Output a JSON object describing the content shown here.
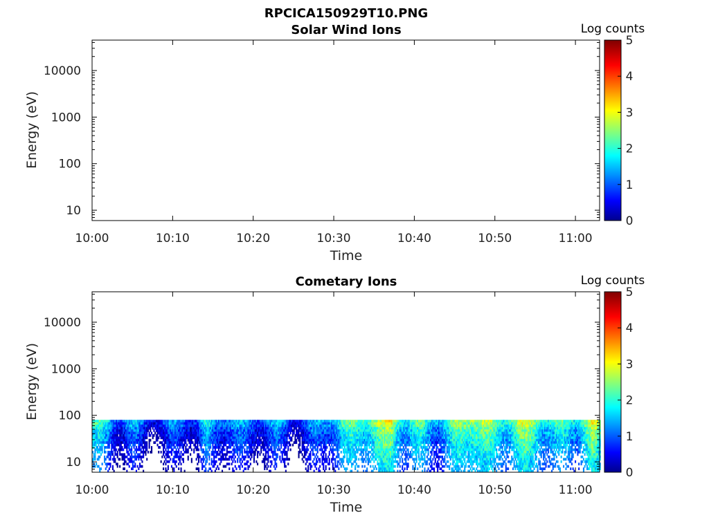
{
  "figure_title": "RPCICA150929T10.PNG",
  "chart_data": [
    {
      "type": "heatmap",
      "title": "Solar Wind Ions",
      "xlabel": "Time",
      "ylabel": "Energy (eV)",
      "x_ticks": [
        "10:00",
        "10:10",
        "10:20",
        "10:30",
        "10:40",
        "10:50",
        "11:00"
      ],
      "y_ticks": [
        "10",
        "100",
        "1000",
        "10000"
      ],
      "y_scale": "log",
      "xlim": [
        "10:00",
        "11:03"
      ],
      "ylim": [
        6,
        45000
      ],
      "colorbar": {
        "label": "Log counts",
        "ticks": [
          "0",
          "1",
          "2",
          "3",
          "4",
          "5"
        ],
        "range": [
          0,
          5
        ],
        "colormap": "jet"
      },
      "data_present": false,
      "time_profile_log_counts": []
    },
    {
      "type": "heatmap",
      "title": "Cometary Ions",
      "xlabel": "Time",
      "ylabel": "Energy (eV)",
      "x_ticks": [
        "10:00",
        "10:10",
        "10:20",
        "10:30",
        "10:40",
        "10:50",
        "11:00"
      ],
      "y_ticks": [
        "10",
        "100",
        "1000",
        "10000"
      ],
      "y_scale": "log",
      "xlim": [
        "10:00",
        "11:03"
      ],
      "ylim": [
        6,
        45000
      ],
      "colorbar": {
        "label": "Log counts",
        "ticks": [
          "0",
          "1",
          "2",
          "3",
          "4",
          "5"
        ],
        "range": [
          0,
          5
        ],
        "colormap": "jet"
      },
      "data_present": true,
      "energy_range_with_counts_ev": [
        6,
        80
      ],
      "time_profile_minutes": [
        0,
        1,
        2,
        3,
        4,
        5,
        6,
        7,
        8,
        9,
        10,
        11,
        12,
        13,
        14,
        15,
        16,
        17,
        18,
        19,
        20,
        21,
        22,
        23,
        24,
        25,
        26,
        27,
        28,
        29,
        30,
        31,
        32,
        33,
        34,
        35,
        36,
        37,
        38,
        39,
        40,
        41,
        42,
        43,
        44,
        45,
        46,
        47,
        48,
        49,
        50,
        51,
        52,
        53,
        54,
        55,
        56,
        57,
        58,
        59,
        60,
        61,
        62,
        63
      ],
      "time_profile_log_counts": [
        1.8,
        1.5,
        1.2,
        1.0,
        1.1,
        1.3,
        1.0,
        0.9,
        1.0,
        1.1,
        1.2,
        1.3,
        1.1,
        0.9,
        1.4,
        1.0,
        1.1,
        1.2,
        1.0,
        0.9,
        1.0,
        1.2,
        1.3,
        1.4,
        1.2,
        1.0,
        1.1,
        1.2,
        1.3,
        1.5,
        1.6,
        1.7,
        1.8,
        2.0,
        2.1,
        2.2,
        2.4,
        2.9,
        2.3,
        2.0,
        2.1,
        2.2,
        2.0,
        1.8,
        1.9,
        2.2,
        2.4,
        2.6,
        2.3,
        2.1,
        1.9,
        2.0,
        2.2,
        2.5,
        2.7,
        2.6,
        2.3,
        2.0,
        2.1,
        2.2,
        2.0,
        2.3,
        2.6,
        2.0
      ]
    }
  ]
}
